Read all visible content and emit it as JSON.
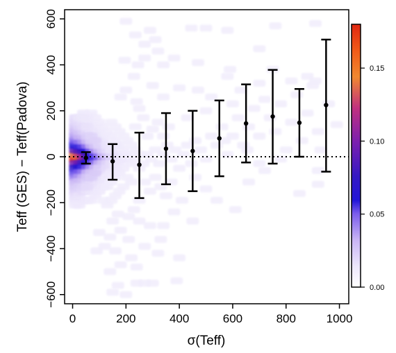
{
  "chart_data": {
    "type": "heatmap",
    "xlabel": "σ(Teff)",
    "ylabel": "Teff (GES) − Teff(Padova)",
    "xlim": [
      -30,
      1035
    ],
    "ylim": [
      -640,
      640
    ],
    "x_ticks": [
      0,
      200,
      400,
      600,
      800,
      1000
    ],
    "y_ticks": [
      -600,
      -400,
      -200,
      0,
      200,
      400,
      600
    ],
    "x_tick_labels": [
      "0",
      "200",
      "400",
      "600",
      "800",
      "1000"
    ],
    "y_tick_labels": [
      "−600",
      "−400",
      "−200",
      "0",
      "200",
      "400",
      "600"
    ],
    "reference_line": {
      "y": 0,
      "style": "dotted"
    },
    "colorbar": {
      "range": [
        0.0,
        0.18
      ],
      "ticks": [
        0.0,
        0.05,
        0.1,
        0.15
      ],
      "tick_labels": [
        "0.00",
        "0.05",
        "0.10",
        "0.15"
      ],
      "colors": [
        "#ffffff",
        "#b090f0",
        "#5a2ee0",
        "#1a10c8",
        "#7a20b0",
        "#e04060",
        "#f09020",
        "#e03010"
      ]
    },
    "binned_series": {
      "x": [
        50,
        150,
        250,
        350,
        450,
        550,
        650,
        750,
        850,
        950
      ],
      "y": [
        -5,
        -20,
        -35,
        35,
        25,
        80,
        145,
        175,
        148,
        225
      ],
      "y_low": [
        -30,
        -100,
        -180,
        -120,
        -150,
        -85,
        -25,
        -30,
        0,
        -65
      ],
      "y_high": [
        20,
        55,
        105,
        190,
        200,
        245,
        315,
        378,
        295,
        510
      ]
    },
    "density_cells": [
      [
        10,
        -10,
        0.18
      ],
      [
        25,
        -10,
        0.16
      ],
      [
        10,
        10,
        0.14
      ],
      [
        25,
        10,
        0.13
      ],
      [
        40,
        -10,
        0.12
      ],
      [
        40,
        10,
        0.11
      ],
      [
        55,
        -10,
        0.09
      ],
      [
        55,
        10,
        0.085
      ],
      [
        10,
        -30,
        0.1
      ],
      [
        25,
        -30,
        0.095
      ],
      [
        40,
        -30,
        0.08
      ],
      [
        10,
        30,
        0.09
      ],
      [
        25,
        30,
        0.085
      ],
      [
        40,
        30,
        0.075
      ],
      [
        70,
        -10,
        0.07
      ],
      [
        70,
        10,
        0.065
      ],
      [
        55,
        -30,
        0.065
      ],
      [
        55,
        30,
        0.06
      ],
      [
        85,
        -10,
        0.055
      ],
      [
        85,
        10,
        0.05
      ],
      [
        10,
        -50,
        0.07
      ],
      [
        25,
        -50,
        0.065
      ],
      [
        10,
        50,
        0.06
      ],
      [
        25,
        50,
        0.055
      ],
      [
        40,
        -50,
        0.055
      ],
      [
        40,
        50,
        0.05
      ],
      [
        70,
        -30,
        0.05
      ],
      [
        70,
        30,
        0.045
      ],
      [
        100,
        -10,
        0.045
      ],
      [
        100,
        10,
        0.04
      ],
      [
        10,
        -70,
        0.05
      ],
      [
        25,
        -70,
        0.045
      ],
      [
        10,
        70,
        0.045
      ],
      [
        25,
        70,
        0.04
      ],
      [
        55,
        -50,
        0.045
      ],
      [
        55,
        50,
        0.04
      ],
      [
        85,
        -30,
        0.04
      ],
      [
        85,
        30,
        0.035
      ],
      [
        115,
        -10,
        0.035
      ],
      [
        115,
        10,
        0.03
      ],
      [
        10,
        -90,
        0.04
      ],
      [
        25,
        -90,
        0.035
      ],
      [
        10,
        90,
        0.035
      ],
      [
        25,
        90,
        0.03
      ],
      [
        40,
        -70,
        0.04
      ],
      [
        40,
        70,
        0.035
      ],
      [
        70,
        -50,
        0.035
      ],
      [
        70,
        50,
        0.03
      ],
      [
        10,
        -110,
        0.03
      ],
      [
        25,
        -110,
        0.028
      ],
      [
        10,
        110,
        0.03
      ],
      [
        25,
        110,
        0.025
      ],
      [
        130,
        -10,
        0.028
      ],
      [
        130,
        10,
        0.025
      ],
      [
        100,
        -30,
        0.03
      ],
      [
        100,
        30,
        0.028
      ],
      [
        10,
        -130,
        0.025
      ],
      [
        25,
        -130,
        0.022
      ],
      [
        10,
        130,
        0.025
      ],
      [
        25,
        130,
        0.02
      ],
      [
        40,
        -90,
        0.03
      ],
      [
        40,
        90,
        0.028
      ],
      [
        55,
        -70,
        0.03
      ],
      [
        55,
        70,
        0.028
      ],
      [
        10,
        -150,
        0.022
      ],
      [
        25,
        -150,
        0.02
      ],
      [
        10,
        150,
        0.02
      ],
      [
        25,
        150,
        0.018
      ],
      [
        40,
        -110,
        0.025
      ],
      [
        40,
        110,
        0.022
      ],
      [
        70,
        -70,
        0.025
      ],
      [
        70,
        70,
        0.022
      ],
      [
        85,
        -50,
        0.028
      ],
      [
        85,
        50,
        0.025
      ],
      [
        115,
        -30,
        0.025
      ],
      [
        115,
        30,
        0.022
      ],
      [
        145,
        -10,
        0.022
      ],
      [
        145,
        10,
        0.02
      ],
      [
        160,
        -10,
        0.02
      ],
      [
        160,
        10,
        0.018
      ],
      [
        10,
        -170,
        0.018
      ],
      [
        25,
        -170,
        0.016
      ],
      [
        10,
        170,
        0.018
      ],
      [
        25,
        170,
        0.015
      ],
      [
        10,
        -190,
        0.016
      ],
      [
        25,
        -190,
        0.015
      ],
      [
        40,
        -150,
        0.018
      ],
      [
        40,
        150,
        0.016
      ],
      [
        55,
        -110,
        0.02
      ],
      [
        55,
        110,
        0.018
      ],
      [
        70,
        -110,
        0.018
      ],
      [
        70,
        110,
        0.016
      ],
      [
        85,
        -90,
        0.02
      ],
      [
        85,
        90,
        0.018
      ],
      [
        100,
        -70,
        0.02
      ],
      [
        100,
        70,
        0.018
      ],
      [
        100,
        -50,
        0.022
      ],
      [
        100,
        50,
        0.02
      ],
      [
        130,
        -30,
        0.02
      ],
      [
        130,
        30,
        0.018
      ],
      [
        175,
        -10,
        0.017
      ],
      [
        175,
        10,
        0.016
      ],
      [
        190,
        -10,
        0.015
      ],
      [
        190,
        10,
        0.014
      ],
      [
        115,
        -70,
        0.016
      ],
      [
        115,
        70,
        0.015
      ],
      [
        130,
        -50,
        0.018
      ],
      [
        130,
        50,
        0.016
      ],
      [
        145,
        -30,
        0.017
      ],
      [
        145,
        30,
        0.015
      ],
      [
        160,
        -50,
        0.015
      ],
      [
        160,
        50,
        0.014
      ],
      [
        55,
        -150,
        0.016
      ],
      [
        55,
        150,
        0.015
      ],
      [
        70,
        -150,
        0.015
      ],
      [
        70,
        150,
        0.014
      ],
      [
        40,
        -190,
        0.015
      ],
      [
        40,
        190,
        0.014
      ],
      [
        85,
        -130,
        0.016
      ],
      [
        85,
        130,
        0.015
      ],
      [
        100,
        -110,
        0.016
      ],
      [
        100,
        110,
        0.015
      ],
      [
        115,
        -90,
        0.015
      ],
      [
        115,
        90,
        0.014
      ],
      [
        40,
        -130,
        0.02
      ],
      [
        40,
        130,
        0.018
      ],
      [
        55,
        -130,
        0.018
      ],
      [
        55,
        130,
        0.016
      ],
      [
        55,
        -90,
        0.024
      ],
      [
        55,
        90,
        0.022
      ],
      [
        70,
        -90,
        0.022
      ],
      [
        70,
        90,
        0.02
      ],
      [
        85,
        -70,
        0.023
      ],
      [
        85,
        70,
        0.021
      ],
      [
        25,
        -210,
        0.013
      ],
      [
        10,
        -210,
        0.013
      ],
      [
        55,
        -190,
        0.013
      ],
      [
        70,
        -190,
        0.012
      ],
      [
        85,
        -170,
        0.013
      ],
      [
        100,
        -150,
        0.013
      ],
      [
        130,
        -90,
        0.013
      ],
      [
        145,
        -70,
        0.013
      ],
      [
        160,
        -30,
        0.014
      ],
      [
        175,
        -30,
        0.013
      ],
      [
        190,
        -50,
        0.012
      ],
      [
        205,
        -10,
        0.013
      ],
      [
        205,
        10,
        0.012
      ],
      [
        220,
        -30,
        0.012
      ],
      [
        115,
        -130,
        0.013
      ],
      [
        130,
        -130,
        0.012
      ],
      [
        145,
        -110,
        0.012
      ],
      [
        160,
        -90,
        0.012
      ],
      [
        175,
        -70,
        0.012
      ],
      [
        190,
        30,
        0.012
      ],
      [
        175,
        50,
        0.012
      ],
      [
        160,
        70,
        0.012
      ],
      [
        145,
        90,
        0.012
      ],
      [
        130,
        110,
        0.012
      ],
      [
        115,
        130,
        0.012
      ],
      [
        100,
        150,
        0.012
      ],
      [
        85,
        170,
        0.012
      ],
      [
        70,
        190,
        0.012
      ],
      [
        55,
        170,
        0.013
      ],
      [
        40,
        170,
        0.014
      ],
      [
        235,
        -10,
        0.011
      ],
      [
        250,
        10,
        0.011
      ],
      [
        235,
        30,
        0.011
      ],
      [
        250,
        -50,
        0.011
      ],
      [
        265,
        -30,
        0.011
      ],
      [
        280,
        10,
        0.011
      ],
      [
        220,
        50,
        0.011
      ],
      [
        205,
        70,
        0.011
      ],
      [
        190,
        90,
        0.011
      ],
      [
        175,
        110,
        0.011
      ],
      [
        160,
        130,
        0.011
      ],
      [
        145,
        150,
        0.011
      ],
      [
        205,
        -90,
        0.011
      ],
      [
        220,
        -110,
        0.011
      ],
      [
        190,
        -130,
        0.011
      ],
      [
        175,
        -150,
        0.011
      ],
      [
        160,
        -170,
        0.011
      ],
      [
        145,
        -190,
        0.011
      ],
      [
        130,
        -210,
        0.011
      ],
      [
        115,
        -190,
        0.011
      ],
      [
        295,
        -10,
        0.011
      ],
      [
        310,
        30,
        0.011
      ],
      [
        325,
        -30,
        0.011
      ],
      [
        340,
        10,
        0.011
      ],
      [
        355,
        50,
        0.011
      ],
      [
        370,
        -10,
        0.011
      ],
      [
        385,
        30,
        0.011
      ],
      [
        400,
        -50,
        0.011
      ],
      [
        415,
        10,
        0.011
      ],
      [
        430,
        50,
        0.011
      ],
      [
        445,
        -30,
        0.011
      ],
      [
        460,
        70,
        0.011
      ],
      [
        280,
        90,
        0.011
      ],
      [
        300,
        120,
        0.011
      ],
      [
        320,
        150,
        0.011
      ],
      [
        265,
        170,
        0.011
      ],
      [
        250,
        210,
        0.011
      ],
      [
        235,
        130,
        0.011
      ],
      [
        340,
        90,
        0.011
      ],
      [
        360,
        130,
        0.011
      ],
      [
        270,
        -110,
        0.011
      ],
      [
        290,
        -150,
        0.011
      ],
      [
        310,
        -90,
        0.011
      ],
      [
        330,
        -130,
        0.011
      ],
      [
        350,
        -170,
        0.011
      ],
      [
        370,
        -110,
        0.011
      ],
      [
        250,
        -190,
        0.011
      ],
      [
        230,
        -230,
        0.011
      ],
      [
        480,
        30,
        0.011
      ],
      [
        500,
        -10,
        0.011
      ],
      [
        520,
        90,
        0.011
      ],
      [
        540,
        50,
        0.011
      ],
      [
        560,
        130,
        0.011
      ],
      [
        580,
        10,
        0.011
      ],
      [
        600,
        90,
        0.011
      ],
      [
        620,
        170,
        0.011
      ],
      [
        640,
        50,
        0.011
      ],
      [
        660,
        130,
        0.011
      ],
      [
        680,
        210,
        0.011
      ],
      [
        700,
        90,
        0.011
      ],
      [
        720,
        250,
        0.011
      ],
      [
        740,
        170,
        0.011
      ],
      [
        760,
        110,
        0.011
      ],
      [
        780,
        230,
        0.011
      ],
      [
        800,
        30,
        0.011
      ],
      [
        820,
        150,
        0.011
      ],
      [
        840,
        270,
        0.011
      ],
      [
        860,
        70,
        0.011
      ],
      [
        880,
        190,
        0.011
      ],
      [
        900,
        310,
        0.011
      ],
      [
        920,
        110,
        0.011
      ],
      [
        960,
        230,
        0.011
      ],
      [
        990,
        140,
        0.011
      ],
      [
        930,
        30,
        0.011
      ],
      [
        780,
        -10,
        0.011
      ],
      [
        700,
        -30,
        0.011
      ],
      [
        500,
        200,
        0.011
      ],
      [
        430,
        170,
        0.011
      ],
      [
        520,
        260,
        0.011
      ],
      [
        600,
        230,
        0.011
      ],
      [
        630,
        290,
        0.011
      ],
      [
        700,
        320,
        0.011
      ],
      [
        820,
        330,
        0.011
      ],
      [
        880,
        350,
        0.011
      ],
      [
        910,
        330,
        0.011
      ],
      [
        750,
        380,
        0.011
      ],
      [
        700,
        470,
        0.011
      ],
      [
        580,
        350,
        0.011
      ],
      [
        470,
        290,
        0.011
      ],
      [
        400,
        300,
        0.011
      ],
      [
        340,
        260,
        0.011
      ],
      [
        300,
        310,
        0.011
      ],
      [
        230,
        350,
        0.011
      ],
      [
        200,
        290,
        0.011
      ],
      [
        180,
        260,
        0.011
      ],
      [
        240,
        240,
        0.011
      ],
      [
        195,
        420,
        0.011
      ],
      [
        245,
        400,
        0.011
      ],
      [
        270,
        430,
        0.011
      ],
      [
        320,
        460,
        0.011
      ],
      [
        340,
        400,
        0.011
      ],
      [
        380,
        430,
        0.011
      ],
      [
        270,
        490,
        0.011
      ],
      [
        310,
        510,
        0.011
      ],
      [
        235,
        530,
        0.011
      ],
      [
        290,
        550,
        0.011
      ],
      [
        200,
        590,
        0.011
      ],
      [
        445,
        560,
        0.011
      ],
      [
        500,
        560,
        0.011
      ],
      [
        580,
        550,
        0.011
      ],
      [
        760,
        570,
        0.011
      ],
      [
        910,
        580,
        0.011
      ],
      [
        590,
        380,
        0.011
      ],
      [
        470,
        410,
        0.011
      ],
      [
        570,
        70,
        0.011
      ],
      [
        655,
        30,
        0.011
      ],
      [
        460,
        -90,
        0.011
      ],
      [
        500,
        -140,
        0.011
      ],
      [
        540,
        -190,
        0.011
      ],
      [
        610,
        -230,
        0.011
      ],
      [
        660,
        -110,
        0.011
      ],
      [
        720,
        -60,
        0.011
      ],
      [
        850,
        -160,
        0.011
      ],
      [
        920,
        -120,
        0.011
      ],
      [
        920,
        -60,
        0.011
      ],
      [
        410,
        -190,
        0.011
      ],
      [
        380,
        -240,
        0.011
      ],
      [
        340,
        -300,
        0.011
      ],
      [
        290,
        -300,
        0.011
      ],
      [
        250,
        -280,
        0.011
      ],
      [
        210,
        -260,
        0.011
      ],
      [
        170,
        -250,
        0.011
      ],
      [
        150,
        -280,
        0.011
      ],
      [
        180,
        -320,
        0.011
      ],
      [
        140,
        -350,
        0.011
      ],
      [
        100,
        -330,
        0.011
      ],
      [
        120,
        -390,
        0.011
      ],
      [
        160,
        -410,
        0.011
      ],
      [
        210,
        -360,
        0.011
      ],
      [
        270,
        -390,
        0.011
      ],
      [
        320,
        -420,
        0.011
      ],
      [
        400,
        -440,
        0.011
      ],
      [
        220,
        -440,
        0.011
      ],
      [
        180,
        -470,
        0.011
      ],
      [
        240,
        -480,
        0.011
      ],
      [
        140,
        -500,
        0.011
      ],
      [
        270,
        -550,
        0.011
      ],
      [
        240,
        -550,
        0.011
      ],
      [
        300,
        -550,
        0.011
      ],
      [
        170,
        -560,
        0.011
      ],
      [
        390,
        -540,
        0.011
      ],
      [
        150,
        -590,
        0.011
      ],
      [
        200,
        -600,
        0.011
      ],
      [
        90,
        -410,
        0.011
      ],
      [
        330,
        -360,
        0.011
      ],
      [
        450,
        -280,
        0.011
      ]
    ],
    "legend": null,
    "grid": false
  }
}
